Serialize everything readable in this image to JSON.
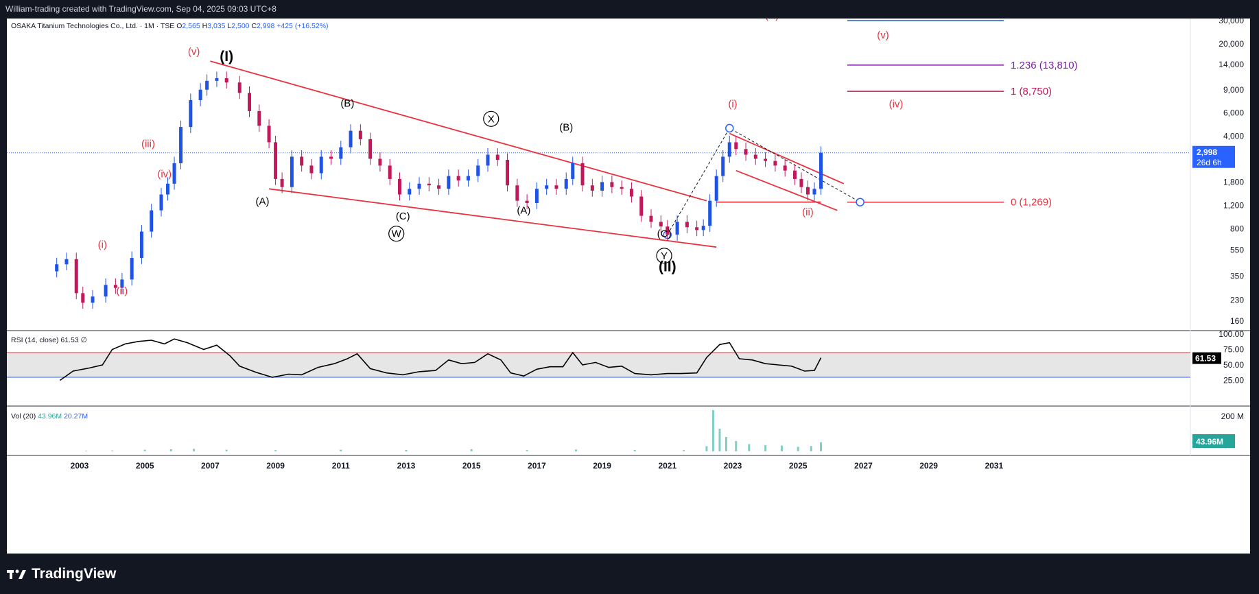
{
  "header": {
    "attribution": "William-trading created with TradingView.com, Sep 04, 2025 09:03 UTC+8"
  },
  "footer": {
    "brand": "TradingView"
  },
  "chart_data": {
    "type": "candlestick",
    "symbol_line": {
      "name": "OSAKA Titanium Technologies Co., Ltd. · 1M · TSE",
      "open_label": "O",
      "open": "2,565",
      "high_label": "H",
      "high": "3,035",
      "low_label": "L",
      "low": "2,500",
      "close_label": "C",
      "close": "2,998",
      "change": "+425 (+16.52%)"
    },
    "price_axis": {
      "scale": "log",
      "ticks": [
        "30,000",
        "20,000",
        "14,000",
        "9,000",
        "6,000",
        "4,000",
        "1,800",
        "1,200",
        "800",
        "550",
        "350",
        "230",
        "160"
      ],
      "last_price": "2,998",
      "countdown": "26d 6h"
    },
    "time_axis": {
      "ticks": [
        "2003",
        "2005",
        "2007",
        "2009",
        "2011",
        "2013",
        "2015",
        "2017",
        "2019",
        "2021",
        "2023",
        "2025",
        "2027",
        "2029",
        "2031"
      ]
    },
    "price_series": [
      {
        "x": 2002.1,
        "y": 380
      },
      {
        "x": 2002.3,
        "y": 430
      },
      {
        "x": 2002.6,
        "y": 470
      },
      {
        "x": 2002.9,
        "y": 260
      },
      {
        "x": 2003.1,
        "y": 220
      },
      {
        "x": 2003.4,
        "y": 245
      },
      {
        "x": 2003.8,
        "y": 300
      },
      {
        "x": 2004.1,
        "y": 285
      },
      {
        "x": 2004.3,
        "y": 330
      },
      {
        "x": 2004.6,
        "y": 480
      },
      {
        "x": 2004.9,
        "y": 760
      },
      {
        "x": 2005.2,
        "y": 1100
      },
      {
        "x": 2005.5,
        "y": 1450
      },
      {
        "x": 2005.7,
        "y": 1750
      },
      {
        "x": 2005.9,
        "y": 2500
      },
      {
        "x": 2006.1,
        "y": 4700
      },
      {
        "x": 2006.4,
        "y": 7500
      },
      {
        "x": 2006.7,
        "y": 9000
      },
      {
        "x": 2006.9,
        "y": 10500
      },
      {
        "x": 2007.2,
        "y": 11000
      },
      {
        "x": 2007.5,
        "y": 10200
      },
      {
        "x": 2007.9,
        "y": 8500
      },
      {
        "x": 2008.2,
        "y": 6200
      },
      {
        "x": 2008.5,
        "y": 4800
      },
      {
        "x": 2008.8,
        "y": 3600
      },
      {
        "x": 2009.0,
        "y": 1900
      },
      {
        "x": 2009.2,
        "y": 1650
      },
      {
        "x": 2009.5,
        "y": 2800
      },
      {
        "x": 2009.8,
        "y": 2400
      },
      {
        "x": 2010.1,
        "y": 2100
      },
      {
        "x": 2010.4,
        "y": 2800
      },
      {
        "x": 2010.7,
        "y": 2700
      },
      {
        "x": 2011.0,
        "y": 3300
      },
      {
        "x": 2011.3,
        "y": 4400
      },
      {
        "x": 2011.6,
        "y": 3800
      },
      {
        "x": 2011.9,
        "y": 2700
      },
      {
        "x": 2012.2,
        "y": 2400
      },
      {
        "x": 2012.5,
        "y": 1900
      },
      {
        "x": 2012.8,
        "y": 1450
      },
      {
        "x": 2013.1,
        "y": 1600
      },
      {
        "x": 2013.4,
        "y": 1750
      },
      {
        "x": 2013.7,
        "y": 1700
      },
      {
        "x": 2014.0,
        "y": 1600
      },
      {
        "x": 2014.3,
        "y": 2000
      },
      {
        "x": 2014.6,
        "y": 1850
      },
      {
        "x": 2014.9,
        "y": 2000
      },
      {
        "x": 2015.2,
        "y": 2400
      },
      {
        "x": 2015.5,
        "y": 2900
      },
      {
        "x": 2015.8,
        "y": 2650
      },
      {
        "x": 2016.1,
        "y": 1700
      },
      {
        "x": 2016.4,
        "y": 1300
      },
      {
        "x": 2016.7,
        "y": 1250
      },
      {
        "x": 2017.0,
        "y": 1600
      },
      {
        "x": 2017.3,
        "y": 1700
      },
      {
        "x": 2017.6,
        "y": 1600
      },
      {
        "x": 2017.9,
        "y": 1900
      },
      {
        "x": 2018.1,
        "y": 2500
      },
      {
        "x": 2018.4,
        "y": 1700
      },
      {
        "x": 2018.7,
        "y": 1550
      },
      {
        "x": 2019.0,
        "y": 1800
      },
      {
        "x": 2019.3,
        "y": 1650
      },
      {
        "x": 2019.6,
        "y": 1600
      },
      {
        "x": 2019.9,
        "y": 1400
      },
      {
        "x": 2020.2,
        "y": 1000
      },
      {
        "x": 2020.5,
        "y": 900
      },
      {
        "x": 2020.8,
        "y": 830
      },
      {
        "x": 2021.0,
        "y": 720
      },
      {
        "x": 2021.3,
        "y": 900
      },
      {
        "x": 2021.6,
        "y": 820
      },
      {
        "x": 2021.9,
        "y": 780
      },
      {
        "x": 2022.1,
        "y": 840
      },
      {
        "x": 2022.3,
        "y": 1300
      },
      {
        "x": 2022.5,
        "y": 2000
      },
      {
        "x": 2022.7,
        "y": 2800
      },
      {
        "x": 2022.9,
        "y": 3600
      },
      {
        "x": 2023.1,
        "y": 3200
      },
      {
        "x": 2023.4,
        "y": 2900
      },
      {
        "x": 2023.7,
        "y": 2700
      },
      {
        "x": 2024.0,
        "y": 2600
      },
      {
        "x": 2024.3,
        "y": 2400
      },
      {
        "x": 2024.6,
        "y": 2200
      },
      {
        "x": 2024.9,
        "y": 1900
      },
      {
        "x": 2025.1,
        "y": 1650
      },
      {
        "x": 2025.3,
        "y": 1450
      },
      {
        "x": 2025.5,
        "y": 1600
      },
      {
        "x": 2025.7,
        "y": 2998
      }
    ],
    "wave_labels": [
      {
        "text": "(v)",
        "x": 2006.5,
        "y": 16500,
        "color": "#e8323e"
      },
      {
        "text": "(I)",
        "x": 2007.5,
        "y": 14800,
        "color": "#000000",
        "bold": true
      },
      {
        "text": "(iii)",
        "x": 2005.1,
        "y": 3300,
        "color": "#e8323e"
      },
      {
        "text": "(iv)",
        "x": 2005.6,
        "y": 1960,
        "color": "#e8323e"
      },
      {
        "text": "(i)",
        "x": 2003.7,
        "y": 570,
        "color": "#e8323e"
      },
      {
        "text": "(ii)",
        "x": 2004.3,
        "y": 255,
        "color": "#e8323e"
      },
      {
        "text": "(A)",
        "x": 2008.6,
        "y": 1210,
        "color": "#000000"
      },
      {
        "text": "(B)",
        "x": 2011.2,
        "y": 6700,
        "color": "#000000"
      },
      {
        "text": "(C)",
        "x": 2012.9,
        "y": 940,
        "color": "#000000"
      },
      {
        "text": "W",
        "x": 2012.7,
        "y": 690,
        "color": "#000000",
        "circled": true
      },
      {
        "text": "X",
        "x": 2015.6,
        "y": 5100,
        "color": "#000000",
        "circled": true
      },
      {
        "text": "(A)",
        "x": 2016.6,
        "y": 1040,
        "color": "#000000"
      },
      {
        "text": "(B)",
        "x": 2017.9,
        "y": 4400,
        "color": "#000000"
      },
      {
        "text": "(C)",
        "x": 2020.9,
        "y": 690,
        "color": "#000000"
      },
      {
        "text": "Y",
        "x": 2020.9,
        "y": 470,
        "color": "#000000",
        "circled": true
      },
      {
        "text": "(II)",
        "x": 2021.0,
        "y": 380,
        "color": "#000000",
        "bold": true
      },
      {
        "text": "(i)",
        "x": 2023.0,
        "y": 6600,
        "color": "#e8323e"
      },
      {
        "text": "(ii)",
        "x": 2025.3,
        "y": 1010,
        "color": "#e8323e"
      },
      {
        "text": "(iii)",
        "x": 2024.2,
        "y": 31000,
        "color": "#e8323e"
      },
      {
        "text": "(iv)",
        "x": 2028.0,
        "y": 6600,
        "color": "#e8323e"
      },
      {
        "text": "(v)",
        "x": 2027.6,
        "y": 22000,
        "color": "#e8323e"
      }
    ],
    "fib_levels": [
      {
        "label": "",
        "price": 30000,
        "color": "#1e5ad6"
      },
      {
        "label": "1.236 (13,810)",
        "price": 13810,
        "color": "#7b1fa2"
      },
      {
        "label": "1 (8,750)",
        "price": 8750,
        "color": "#c2185b"
      },
      {
        "label": "0 (1,269)",
        "price": 1269,
        "color": "#e8323e"
      }
    ],
    "rsi": {
      "label": "RSI (14, close)",
      "value": "61.53",
      "extra": "∅",
      "ticks": [
        "100.00",
        "75.00",
        "50.00",
        "25.00"
      ],
      "upper_band": 70,
      "lower_band": 30,
      "series": [
        {
          "x": 2002.4,
          "y": 25
        },
        {
          "x": 2002.8,
          "y": 40
        },
        {
          "x": 2003.3,
          "y": 45
        },
        {
          "x": 2003.7,
          "y": 50
        },
        {
          "x": 2004.0,
          "y": 75
        },
        {
          "x": 2004.4,
          "y": 84
        },
        {
          "x": 2004.8,
          "y": 88
        },
        {
          "x": 2005.2,
          "y": 90
        },
        {
          "x": 2005.6,
          "y": 84
        },
        {
          "x": 2005.9,
          "y": 92
        },
        {
          "x": 2006.3,
          "y": 86
        },
        {
          "x": 2006.8,
          "y": 75
        },
        {
          "x": 2007.2,
          "y": 82
        },
        {
          "x": 2007.6,
          "y": 65
        },
        {
          "x": 2007.9,
          "y": 48
        },
        {
          "x": 2008.4,
          "y": 38
        },
        {
          "x": 2008.9,
          "y": 30
        },
        {
          "x": 2009.4,
          "y": 35
        },
        {
          "x": 2009.8,
          "y": 34
        },
        {
          "x": 2010.3,
          "y": 46
        },
        {
          "x": 2010.8,
          "y": 52
        },
        {
          "x": 2011.2,
          "y": 60
        },
        {
          "x": 2011.5,
          "y": 68
        },
        {
          "x": 2011.9,
          "y": 44
        },
        {
          "x": 2012.4,
          "y": 37
        },
        {
          "x": 2012.9,
          "y": 34
        },
        {
          "x": 2013.4,
          "y": 39
        },
        {
          "x": 2013.9,
          "y": 41
        },
        {
          "x": 2014.3,
          "y": 58
        },
        {
          "x": 2014.7,
          "y": 52
        },
        {
          "x": 2015.1,
          "y": 54
        },
        {
          "x": 2015.5,
          "y": 68
        },
        {
          "x": 2015.9,
          "y": 58
        },
        {
          "x": 2016.2,
          "y": 37
        },
        {
          "x": 2016.6,
          "y": 32
        },
        {
          "x": 2017.0,
          "y": 43
        },
        {
          "x": 2017.4,
          "y": 47
        },
        {
          "x": 2017.8,
          "y": 47
        },
        {
          "x": 2018.1,
          "y": 70
        },
        {
          "x": 2018.4,
          "y": 50
        },
        {
          "x": 2018.8,
          "y": 54
        },
        {
          "x": 2019.2,
          "y": 46
        },
        {
          "x": 2019.6,
          "y": 48
        },
        {
          "x": 2020.0,
          "y": 36
        },
        {
          "x": 2020.5,
          "y": 34
        },
        {
          "x": 2021.0,
          "y": 36
        },
        {
          "x": 2021.4,
          "y": 36
        },
        {
          "x": 2021.9,
          "y": 37
        },
        {
          "x": 2022.2,
          "y": 62
        },
        {
          "x": 2022.6,
          "y": 83
        },
        {
          "x": 2022.9,
          "y": 86
        },
        {
          "x": 2023.2,
          "y": 60
        },
        {
          "x": 2023.6,
          "y": 58
        },
        {
          "x": 2024.0,
          "y": 52
        },
        {
          "x": 2024.4,
          "y": 50
        },
        {
          "x": 2024.8,
          "y": 48
        },
        {
          "x": 2025.2,
          "y": 40
        },
        {
          "x": 2025.5,
          "y": 41
        },
        {
          "x": 2025.7,
          "y": 61.53
        }
      ]
    },
    "volume": {
      "label": "Vol (20)",
      "value1": "43.96M",
      "value2": "20.27M",
      "ticks": [
        "200 M"
      ],
      "last_value": "43.96M",
      "series": [
        {
          "x": 2003.2,
          "y": 3
        },
        {
          "x": 2004.0,
          "y": 4
        },
        {
          "x": 2005.0,
          "y": 8
        },
        {
          "x": 2005.8,
          "y": 10
        },
        {
          "x": 2006.5,
          "y": 12
        },
        {
          "x": 2007.5,
          "y": 8
        },
        {
          "x": 2009.0,
          "y": 6
        },
        {
          "x": 2011.0,
          "y": 8
        },
        {
          "x": 2013.0,
          "y": 7
        },
        {
          "x": 2015.0,
          "y": 10
        },
        {
          "x": 2016.7,
          "y": 6
        },
        {
          "x": 2018.2,
          "y": 9
        },
        {
          "x": 2020.0,
          "y": 7
        },
        {
          "x": 2021.5,
          "y": 6
        },
        {
          "x": 2022.2,
          "y": 25
        },
        {
          "x": 2022.4,
          "y": 200
        },
        {
          "x": 2022.6,
          "y": 110
        },
        {
          "x": 2022.8,
          "y": 70
        },
        {
          "x": 2023.1,
          "y": 50
        },
        {
          "x": 2023.5,
          "y": 35
        },
        {
          "x": 2024.0,
          "y": 30
        },
        {
          "x": 2024.5,
          "y": 28
        },
        {
          "x": 2025.0,
          "y": 22
        },
        {
          "x": 2025.4,
          "y": 26
        },
        {
          "x": 2025.7,
          "y": 43.96
        }
      ]
    }
  }
}
